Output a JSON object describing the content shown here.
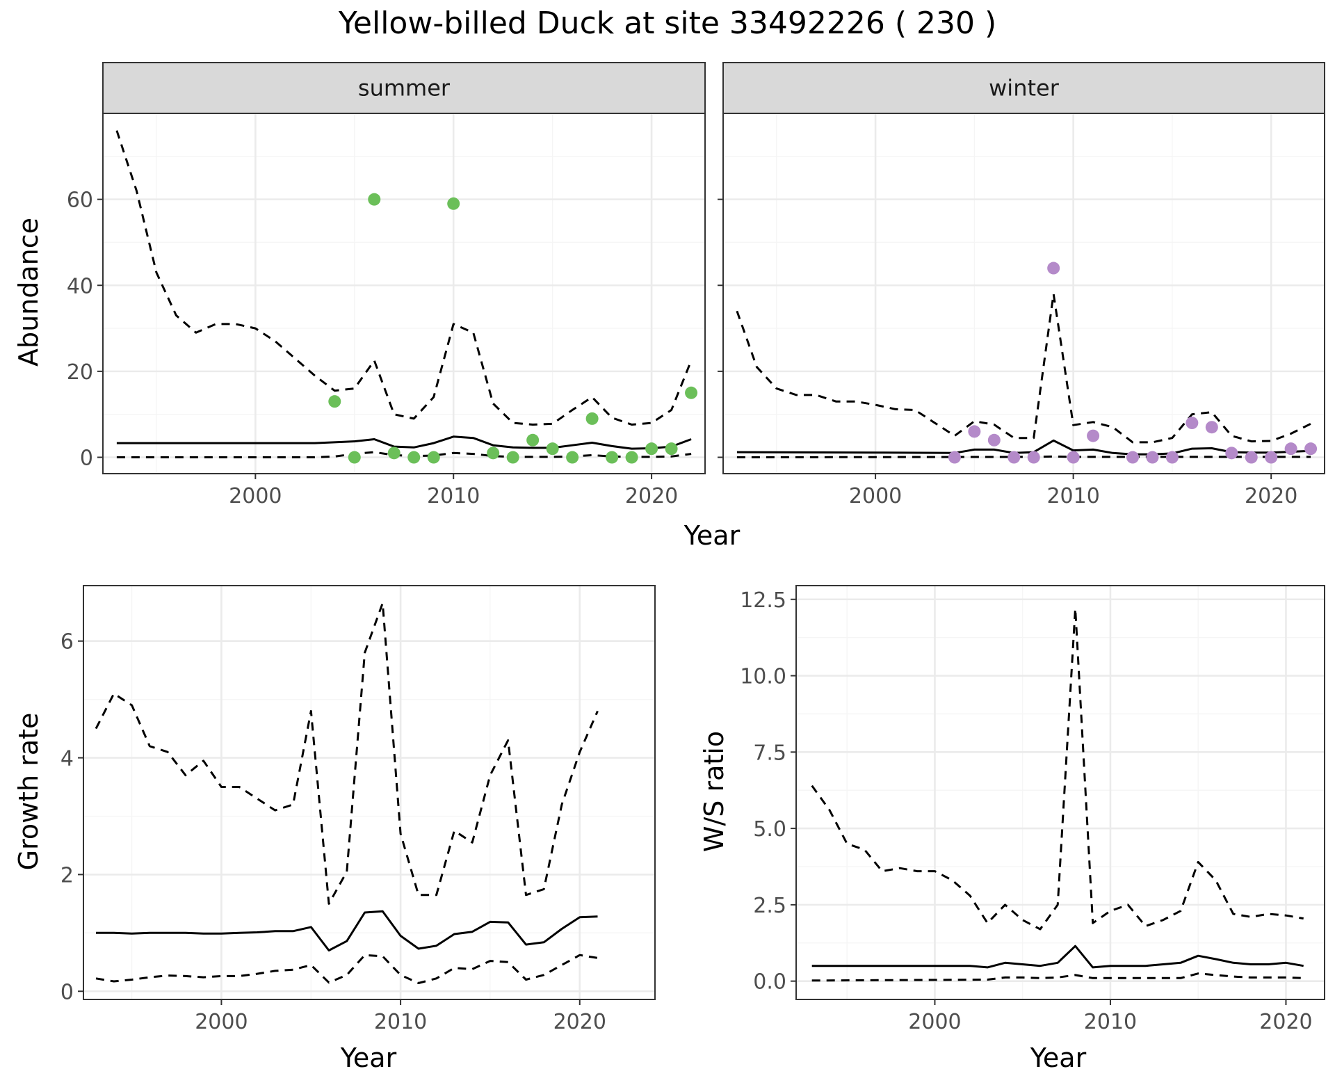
{
  "title": "Yellow-billed Duck at site 33492226 ( 230 )",
  "colors": {
    "summer_points": "#6bbf59",
    "winter_points": "#b48ac9",
    "line": "#000000",
    "strip_fill": "#d9d9d9",
    "grid_major": "#ebebeb",
    "grid_minor": "#f5f5f5"
  },
  "chart_data": [
    {
      "type": "line",
      "panel": "summer",
      "strip_label": "summer",
      "xlabel": "Year",
      "ylabel": "Abundance",
      "xlim": [
        1992.3,
        2022.7
      ],
      "ylim": [
        -3.8,
        80
      ],
      "xticks": [
        2000,
        2010,
        2020
      ],
      "yticks": [
        0,
        20,
        40,
        60
      ],
      "grid": true,
      "series": [
        {
          "role": "mean",
          "style": "solid",
          "x": [
            1993,
            1995,
            2000,
            2003,
            2005,
            2006,
            2007,
            2008,
            2009,
            2010,
            2011,
            2012,
            2013,
            2014,
            2015,
            2016,
            2017,
            2018,
            2019,
            2020,
            2021,
            2022
          ],
          "y": [
            3.3,
            3.3,
            3.3,
            3.3,
            3.7,
            4.2,
            2.5,
            2.3,
            3.3,
            4.8,
            4.5,
            2.8,
            2.3,
            2.2,
            2.2,
            2.8,
            3.4,
            2.6,
            2.0,
            2.1,
            2.5,
            4.2
          ]
        },
        {
          "role": "upper",
          "style": "dashed",
          "x": [
            1993,
            1994,
            1995,
            1996,
            1997,
            1998,
            1999,
            2000,
            2001,
            2002,
            2003,
            2004,
            2005,
            2006,
            2007,
            2008,
            2009,
            2010,
            2011,
            2012,
            2013,
            2014,
            2015,
            2016,
            2017,
            2018,
            2019,
            2020,
            2021,
            2022
          ],
          "y": [
            76,
            62,
            43,
            33,
            29,
            31,
            31,
            30,
            27,
            23,
            19,
            15.5,
            16,
            22.5,
            10,
            9,
            14,
            31,
            29,
            12.5,
            8,
            7.6,
            7.8,
            11,
            14,
            9.2,
            7.6,
            8,
            11,
            22.5
          ]
        },
        {
          "role": "lower",
          "style": "dashed",
          "x": [
            1993,
            2003,
            2004,
            2005,
            2006,
            2007,
            2008,
            2009,
            2010,
            2011,
            2012,
            2013,
            2014,
            2015,
            2016,
            2017,
            2018,
            2019,
            2020,
            2021,
            2022
          ],
          "y": [
            0,
            0,
            0.2,
            0.8,
            1.2,
            0.5,
            0.3,
            0.4,
            1.0,
            0.8,
            0.3,
            0.1,
            0.1,
            0.1,
            0.2,
            0.5,
            0.2,
            0.1,
            0.1,
            0.2,
            0.8
          ]
        }
      ],
      "points": {
        "x": [
          2004,
          2005,
          2006,
          2007,
          2008,
          2009,
          2010,
          2012,
          2013,
          2014,
          2015,
          2016,
          2017,
          2018,
          2019,
          2020,
          2021,
          2022
        ],
        "y": [
          13,
          0,
          60,
          1,
          0,
          0,
          59,
          1,
          0,
          4,
          2,
          0,
          9,
          0,
          0,
          2,
          2,
          15
        ]
      }
    },
    {
      "type": "line",
      "panel": "winter",
      "strip_label": "winter",
      "xlabel": "Year",
      "ylabel": "Abundance",
      "xlim": [
        1992.3,
        2022.7
      ],
      "ylim": [
        -3.8,
        80
      ],
      "xticks": [
        2000,
        2010,
        2020
      ],
      "yticks": [
        0,
        20,
        40,
        60
      ],
      "grid": true,
      "series": [
        {
          "role": "mean",
          "style": "solid",
          "x": [
            1993,
            2000,
            2004,
            2005,
            2006,
            2007,
            2008,
            2009,
            2010,
            2011,
            2012,
            2013,
            2014,
            2015,
            2016,
            2017,
            2018,
            2019,
            2020,
            2021,
            2022
          ],
          "y": [
            1.2,
            1.1,
            1.0,
            1.8,
            1.8,
            1.0,
            1.2,
            3.9,
            1.6,
            1.8,
            1.0,
            0.7,
            0.7,
            0.9,
            2.0,
            2.1,
            1.2,
            1.1,
            1.1,
            1.3,
            1.5
          ]
        },
        {
          "role": "upper",
          "style": "dashed",
          "x": [
            1993,
            1994,
            1995,
            1996,
            1997,
            1998,
            1999,
            2000,
            2001,
            2002,
            2003,
            2004,
            2005,
            2006,
            2007,
            2008,
            2009,
            2010,
            2011,
            2012,
            2013,
            2014,
            2015,
            2016,
            2017,
            2018,
            2019,
            2020,
            2021,
            2022
          ],
          "y": [
            34,
            21,
            16,
            14.5,
            14.5,
            13,
            13,
            12.2,
            11.2,
            11,
            8,
            5,
            8.4,
            7.6,
            4.5,
            4.5,
            38,
            7.5,
            8.2,
            7,
            3.5,
            3.5,
            4.5,
            10,
            10.5,
            5,
            3.7,
            3.8,
            5.5,
            7.8
          ]
        },
        {
          "role": "lower",
          "style": "dashed",
          "x": [
            1993,
            2008,
            2009,
            2010,
            2022
          ],
          "y": [
            0,
            0.1,
            0.2,
            0.1,
            0.1
          ]
        }
      ],
      "points": {
        "x": [
          2004,
          2005,
          2006,
          2007,
          2008,
          2009,
          2010,
          2011,
          2013,
          2014,
          2015,
          2016,
          2017,
          2018,
          2019,
          2020,
          2021,
          2022
        ],
        "y": [
          0,
          6,
          4,
          0,
          0,
          44,
          0,
          5,
          0,
          0,
          0,
          8,
          7,
          1,
          0,
          0,
          2,
          2
        ]
      }
    },
    {
      "type": "line",
      "panel": "growth",
      "xlabel": "Year",
      "ylabel": "Growth rate",
      "xlim": [
        1992.3,
        2024.2
      ],
      "ylim": [
        -0.14,
        6.95
      ],
      "xticks": [
        2000,
        2010,
        2020
      ],
      "yticks": [
        0,
        2,
        4,
        6
      ],
      "grid": true,
      "series": [
        {
          "role": "mean",
          "style": "solid",
          "x": [
            1993,
            1994,
            1995,
            1996,
            1997,
            1998,
            1999,
            2000,
            2001,
            2002,
            2003,
            2004,
            2005,
            2006,
            2007,
            2008,
            2009,
            2010,
            2011,
            2012,
            2013,
            2014,
            2015,
            2016,
            2017,
            2018,
            2019,
            2020,
            2021
          ],
          "y": [
            1.0,
            1.0,
            0.99,
            1.0,
            1.0,
            1.0,
            0.99,
            0.99,
            1.0,
            1.01,
            1.03,
            1.03,
            1.1,
            0.7,
            0.86,
            1.35,
            1.37,
            0.95,
            0.73,
            0.78,
            0.98,
            1.02,
            1.19,
            1.18,
            0.8,
            0.84,
            1.07,
            1.27,
            1.28
          ]
        },
        {
          "role": "upper",
          "style": "dashed",
          "x": [
            1993,
            1994,
            1995,
            1996,
            1997,
            1998,
            1999,
            2000,
            2001,
            2002,
            2003,
            2004,
            2005,
            2006,
            2007,
            2008,
            2009,
            2010,
            2011,
            2012,
            2013,
            2014,
            2015,
            2016,
            2017,
            2018,
            2019,
            2020,
            2021
          ],
          "y": [
            4.5,
            5.1,
            4.9,
            4.2,
            4.1,
            3.7,
            3.95,
            3.5,
            3.5,
            3.3,
            3.1,
            3.2,
            4.8,
            1.5,
            2.05,
            5.8,
            6.65,
            2.7,
            1.65,
            1.65,
            2.75,
            2.55,
            3.7,
            4.3,
            1.65,
            1.75,
            3.2,
            4.1,
            4.8
          ]
        },
        {
          "role": "lower",
          "style": "dashed",
          "x": [
            1993,
            1994,
            1995,
            1996,
            1997,
            1998,
            1999,
            2000,
            2001,
            2002,
            2003,
            2004,
            2005,
            2006,
            2007,
            2008,
            2009,
            2010,
            2011,
            2012,
            2013,
            2014,
            2015,
            2016,
            2017,
            2018,
            2019,
            2020,
            2021
          ],
          "y": [
            0.22,
            0.17,
            0.2,
            0.24,
            0.27,
            0.26,
            0.24,
            0.26,
            0.26,
            0.3,
            0.35,
            0.37,
            0.45,
            0.15,
            0.28,
            0.62,
            0.6,
            0.28,
            0.14,
            0.22,
            0.4,
            0.38,
            0.52,
            0.5,
            0.2,
            0.28,
            0.45,
            0.62,
            0.57
          ]
        }
      ]
    },
    {
      "type": "line",
      "panel": "ratio",
      "xlabel": "Year",
      "ylabel": "W/S ratio",
      "xlim": [
        1992.1,
        2022.2
      ],
      "ylim": [
        -0.6,
        12.95
      ],
      "xticks": [
        2000,
        2010,
        2020
      ],
      "yticks": [
        0.0,
        2.5,
        5.0,
        7.5,
        10.0,
        12.5
      ],
      "ytick_labels": [
        "0.0",
        "2.5",
        "5.0",
        "7.5",
        "10.0",
        "12.5"
      ],
      "grid": true,
      "series": [
        {
          "role": "mean",
          "style": "solid",
          "x": [
            1993,
            1998,
            2002,
            2003,
            2004,
            2005,
            2006,
            2007,
            2008,
            2009,
            2010,
            2011,
            2012,
            2013,
            2014,
            2015,
            2016,
            2017,
            2018,
            2019,
            2020,
            2021
          ],
          "y": [
            0.5,
            0.5,
            0.5,
            0.45,
            0.6,
            0.55,
            0.5,
            0.6,
            1.15,
            0.45,
            0.5,
            0.5,
            0.5,
            0.55,
            0.6,
            0.83,
            0.72,
            0.6,
            0.55,
            0.55,
            0.6,
            0.5
          ]
        },
        {
          "role": "upper",
          "style": "dashed",
          "x": [
            1993,
            1994,
            1995,
            1996,
            1997,
            1998,
            1999,
            2000,
            2001,
            2002,
            2003,
            2004,
            2005,
            2006,
            2007,
            2008,
            2009,
            2010,
            2011,
            2012,
            2013,
            2014,
            2015,
            2016,
            2017,
            2018,
            2019,
            2020,
            2021
          ],
          "y": [
            6.4,
            5.6,
            4.5,
            4.3,
            3.6,
            3.7,
            3.6,
            3.6,
            3.3,
            2.8,
            1.9,
            2.5,
            2.0,
            1.7,
            2.5,
            12.2,
            1.9,
            2.3,
            2.5,
            1.8,
            2.0,
            2.3,
            3.9,
            3.3,
            2.2,
            2.1,
            2.2,
            2.15,
            2.05
          ]
        },
        {
          "role": "lower",
          "style": "dashed",
          "x": [
            1993,
            2003,
            2004,
            2005,
            2006,
            2007,
            2008,
            2009,
            2010,
            2011,
            2012,
            2013,
            2014,
            2015,
            2016,
            2017,
            2018,
            2019,
            2020,
            2021
          ],
          "y": [
            0.02,
            0.05,
            0.12,
            0.12,
            0.1,
            0.12,
            0.2,
            0.1,
            0.1,
            0.1,
            0.1,
            0.1,
            0.1,
            0.25,
            0.2,
            0.15,
            0.12,
            0.12,
            0.12,
            0.1
          ]
        }
      ]
    }
  ]
}
